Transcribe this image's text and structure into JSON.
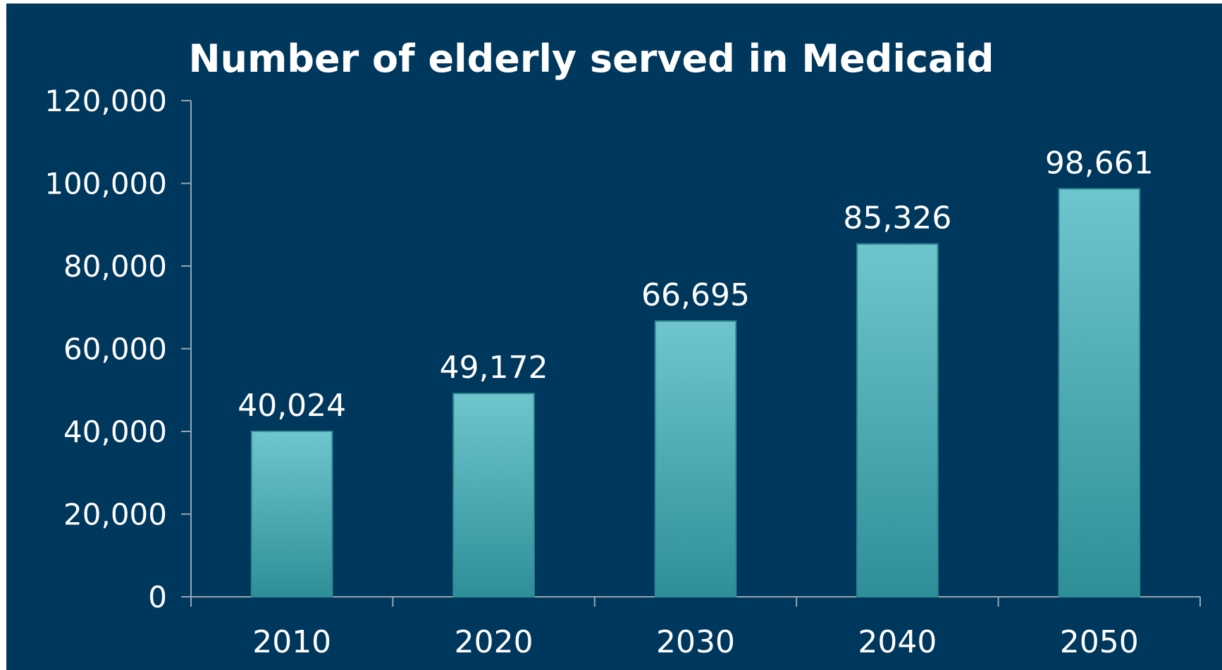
{
  "chart_data": {
    "type": "bar",
    "title": "Number of elderly served in Medicaid",
    "xlabel": "",
    "ylabel": "",
    "categories": [
      "2010",
      "2020",
      "2030",
      "2040",
      "2050"
    ],
    "values": [
      40024,
      49172,
      66695,
      85326,
      98661
    ],
    "data_labels": [
      "40,024",
      "49,172",
      "66,695",
      "85,326",
      "98,661"
    ],
    "ylim": [
      0,
      120000
    ],
    "yticks": [
      0,
      20000,
      40000,
      60000,
      80000,
      100000,
      120000
    ],
    "ytick_labels": [
      "0",
      "20,000",
      "40,000",
      "60,000",
      "80,000",
      "100,000",
      "120,000"
    ],
    "grid": false,
    "legend": "none",
    "colors": {
      "background": "#00375d",
      "bar_top": "#6fc5cd",
      "bar_bottom": "#2e8f98",
      "text": "#ffffff",
      "axis": "#9aa6b2"
    }
  }
}
